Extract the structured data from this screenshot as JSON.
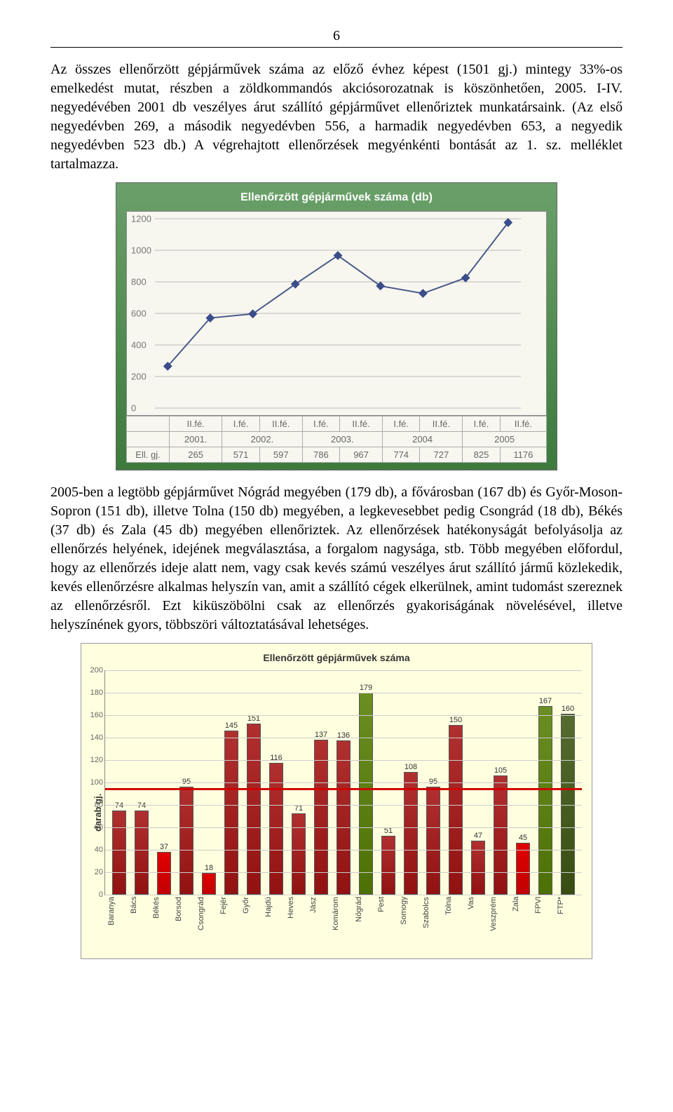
{
  "page_number": "6",
  "paragraph1": "Az összes ellenőrzött gépjárművek száma az előző évhez képest (1501 gj.) mintegy 33%-os emelkedést mutat, részben a zöldkommandós akciósorozatnak is köszönhetően, 2005. I-IV. negyedévében 2001 db veszélyes árut szállító gépjárművet ellenőriztek munkatársaink. (Az első negyedévben 269, a második negyedévben 556, a harmadik negyedévben 653, a negyedik negyedévben 523 db.) A végrehajtott ellenőrzések megyénkénti bontását az 1. sz. melléklet tartalmazza.",
  "paragraph2": "2005-ben a legtöbb gépjárművet Nógrád megyében (179 db), a fővárosban (167 db) és Győr-Moson-Sopron (151 db), illetve Tolna (150 db) megyében, a legkevesebbet pedig Csongrád (18 db), Békés (37 db) és Zala (45 db) megyében ellenőriztek. Az ellenőrzések hatékonyságát befolyásolja az ellenőrzés helyének, idejének megválasztása, a forgalom nagysága, stb. Több megyében előfordul, hogy az ellenőrzés ideje alatt nem, vagy csak kevés számú veszélyes árut szállító jármű közlekedik, kevés ellenőrzésre alkalmas helyszín van, amit a szállító cégek elkerülnek, amint tudomást szereznek az ellenőrzésről. Ezt kiküszöbölni csak az ellenőrzés gyakoriságának növelésével, illetve helyszínének gyors, többszöri változtatásával lehetséges.",
  "chart1": {
    "type": "line",
    "title": "Ellenőrzött gépjárművek száma (db)",
    "row_header": "Ell. gj.",
    "y": {
      "min": 0,
      "max": 1200,
      "step": 200,
      "ticks": [
        0,
        200,
        400,
        600,
        800,
        1000,
        1200
      ]
    },
    "halfyear_labels": [
      "II.fé.",
      "I.fé.",
      "II.fé.",
      "I.fé.",
      "II.fé.",
      "I.fé.",
      "II.fé.",
      "I.fé.",
      "II.fé."
    ],
    "year_groups": [
      {
        "label": "2001.",
        "span": 1
      },
      {
        "label": "2002.",
        "span": 2
      },
      {
        "label": "2003.",
        "span": 2
      },
      {
        "label": "2004",
        "span": 2
      },
      {
        "label": "2005",
        "span": 2
      }
    ],
    "values": [
      265,
      571,
      597,
      786,
      967,
      774,
      727,
      825,
      1176
    ],
    "series_color": "#3b4d8a",
    "marker": "diamond",
    "marker_size": 8,
    "background": "linear-gradient(180deg,#6aa06a,#3d7a3d)",
    "plot_background": "#f7f7ef",
    "grid_color": "#bbbbbb"
  },
  "chart2": {
    "type": "bar",
    "title": "Ellenőrzött gépjárművek száma",
    "ylabel": "darab gj.",
    "y": {
      "min": 0,
      "max": 200,
      "step": 20,
      "ticks": [
        0,
        20,
        40,
        60,
        80,
        100,
        120,
        140,
        160,
        180,
        200
      ]
    },
    "reference_line": {
      "value": 95,
      "color": "#d00000",
      "width": 3
    },
    "background": "#ffffe0",
    "grid_color": "#cccccc",
    "bar_border": "#555555",
    "bars": [
      {
        "label": "Baranya",
        "value": 74,
        "color": "#b03030"
      },
      {
        "label": "Bács",
        "value": 74,
        "color": "#b03030"
      },
      {
        "label": "Békés",
        "value": 37,
        "color": "#e00000"
      },
      {
        "label": "Borsod",
        "value": 95,
        "color": "#b03030"
      },
      {
        "label": "Csongrád",
        "value": 18,
        "color": "#e00000"
      },
      {
        "label": "Fejér",
        "value": 145,
        "color": "#b03030"
      },
      {
        "label": "Győr",
        "value": 151,
        "color": "#b03030"
      },
      {
        "label": "Hajdú",
        "value": 116,
        "color": "#b03030"
      },
      {
        "label": "Heves",
        "value": 71,
        "color": "#b03030"
      },
      {
        "label": "Jász",
        "value": 137,
        "color": "#b03030"
      },
      {
        "label": "Komárom",
        "value": 136,
        "color": "#b03030"
      },
      {
        "label": "Nógrád",
        "value": 179,
        "color": "#6b8e23"
      },
      {
        "label": "Pest",
        "value": 51,
        "color": "#b03030"
      },
      {
        "label": "Somogy",
        "value": 108,
        "color": "#b03030"
      },
      {
        "label": "Szabolcs",
        "value": 95,
        "color": "#b03030"
      },
      {
        "label": "Tolna",
        "value": 150,
        "color": "#b03030"
      },
      {
        "label": "Vas",
        "value": 47,
        "color": "#b03030"
      },
      {
        "label": "Veszprém",
        "value": 105,
        "color": "#b03030"
      },
      {
        "label": "Zala",
        "value": 45,
        "color": "#e00000"
      },
      {
        "label": "FPVI",
        "value": 167,
        "color": "#6b8e23"
      },
      {
        "label": "FTP*",
        "value": 160,
        "color": "#556b2f"
      }
    ]
  }
}
